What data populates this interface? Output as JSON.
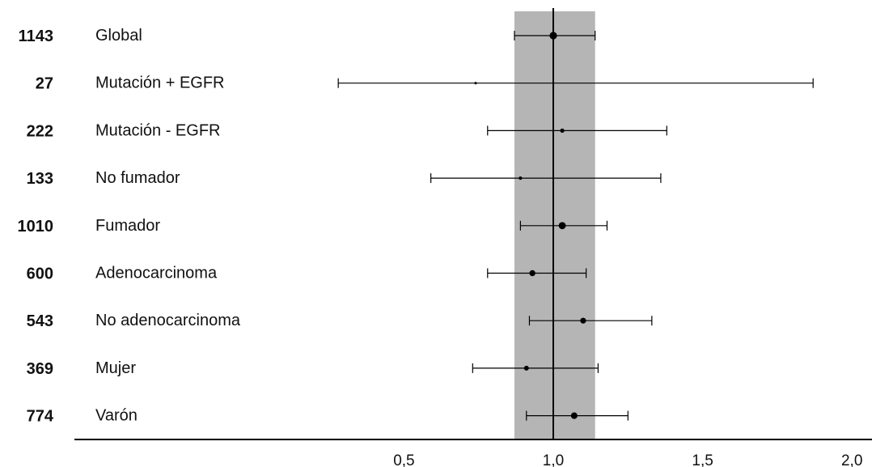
{
  "chart_data": {
    "type": "forest",
    "xlim": [
      0.0,
      2.0
    ],
    "x_ticks": [
      {
        "value": 0.5,
        "label": "0,5"
      },
      {
        "value": 1.0,
        "label": "1,0"
      },
      {
        "value": 1.5,
        "label": "1,5"
      },
      {
        "value": 2.0,
        "label": "2,0"
      }
    ],
    "reference_line": 1.0,
    "shaded_band": [
      0.87,
      1.14
    ],
    "colors": {
      "band": "#b5b5b5",
      "ink": "#000000"
    },
    "rows": [
      {
        "n": "1143",
        "label": "Global",
        "est": 1.0,
        "lo": 0.87,
        "hi": 1.14,
        "weight": 1.0
      },
      {
        "n": "27",
        "label": "Mutación + EGFR",
        "est": 0.74,
        "lo": 0.28,
        "hi": 1.87,
        "weight": 0.15
      },
      {
        "n": "222",
        "label": "Mutación - EGFR",
        "est": 1.03,
        "lo": 0.78,
        "hi": 1.38,
        "weight": 0.45
      },
      {
        "n": "133",
        "label": "No fumador",
        "est": 0.89,
        "lo": 0.59,
        "hi": 1.36,
        "weight": 0.3
      },
      {
        "n": "1010",
        "label": "Fumador",
        "est": 1.03,
        "lo": 0.89,
        "hi": 1.18,
        "weight": 0.95
      },
      {
        "n": "600",
        "label": "Adenocarcinoma",
        "est": 0.93,
        "lo": 0.78,
        "hi": 1.11,
        "weight": 0.75
      },
      {
        "n": "543",
        "label": "No adenocarcinoma",
        "est": 1.1,
        "lo": 0.92,
        "hi": 1.33,
        "weight": 0.72
      },
      {
        "n": "369",
        "label": "Mujer",
        "est": 0.91,
        "lo": 0.73,
        "hi": 1.15,
        "weight": 0.55
      },
      {
        "n": "774",
        "label": "Varón",
        "est": 1.07,
        "lo": 0.91,
        "hi": 1.25,
        "weight": 0.85
      }
    ]
  }
}
